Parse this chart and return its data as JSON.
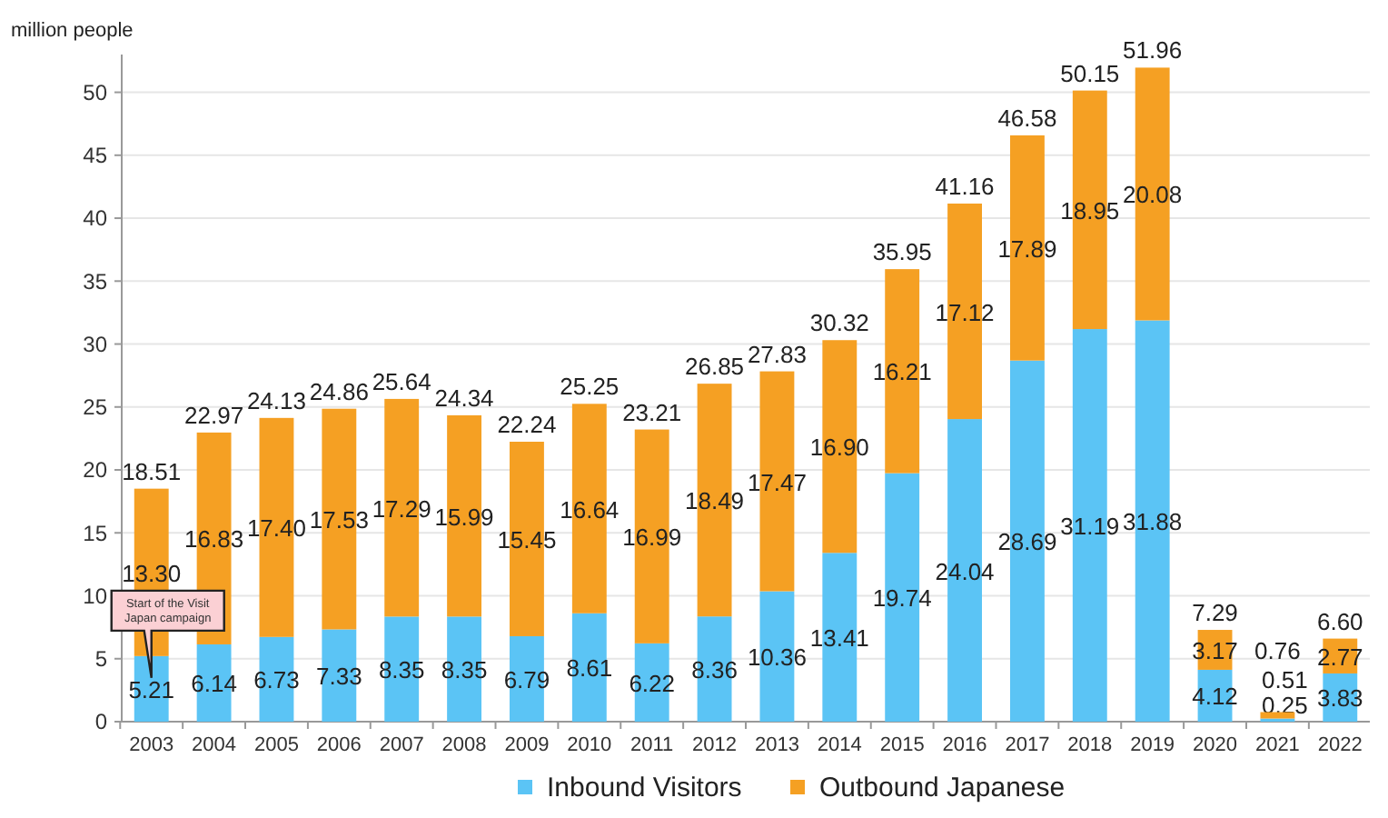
{
  "chart_data": {
    "type": "bar",
    "stacked": true,
    "ylabel": "million people",
    "categories": [
      "2003",
      "2004",
      "2005",
      "2006",
      "2007",
      "2008",
      "2009",
      "2010",
      "2011",
      "2012",
      "2013",
      "2014",
      "2015",
      "2016",
      "2017",
      "2018",
      "2019",
      "2020",
      "2021",
      "2022"
    ],
    "series": [
      {
        "name": "Inbound Visitors",
        "color": "#5bc4f5",
        "values": [
          5.21,
          6.14,
          6.73,
          7.33,
          8.35,
          8.35,
          6.79,
          8.61,
          6.22,
          8.36,
          10.36,
          13.41,
          19.74,
          24.04,
          28.69,
          31.19,
          31.88,
          4.12,
          0.25,
          3.83
        ],
        "value_labels": [
          "5.21",
          "6.14",
          "6.73",
          "7.33",
          "8.35",
          "8.35",
          "6.79",
          "8.61",
          "6.22",
          "8.36",
          "10.36",
          "13.41",
          "19.74",
          "24.04",
          "28.69",
          "31.19",
          "31.88",
          "4.12",
          "0.25",
          "3.83"
        ]
      },
      {
        "name": "Outbound Japanese",
        "color": "#f5a023",
        "values": [
          13.3,
          16.83,
          17.4,
          17.53,
          17.29,
          15.99,
          15.45,
          16.64,
          16.99,
          18.49,
          17.47,
          16.9,
          16.21,
          17.12,
          17.89,
          18.95,
          20.08,
          3.17,
          0.51,
          2.77
        ],
        "value_labels": [
          "13.30",
          "16.83",
          "17.40",
          "17.53",
          "17.29",
          "15.99",
          "15.45",
          "16.64",
          "16.99",
          "18.49",
          "17.47",
          "16.90",
          "16.21",
          "17.12",
          "17.89",
          "18.95",
          "20.08",
          "3.17",
          "0.51",
          "2.77"
        ]
      }
    ],
    "totals": [
      "18.51",
      "22.97",
      "24.13",
      "24.86",
      "25.64",
      "24.34",
      "22.24",
      "25.25",
      "23.21",
      "26.85",
      "27.83",
      "30.32",
      "35.95",
      "41.16",
      "46.58",
      "50.15",
      "51.96",
      "7.29",
      "0.76",
      "6.60"
    ],
    "ylim": [
      0,
      53
    ],
    "yticks": [
      0,
      5,
      10,
      15,
      20,
      25,
      30,
      35,
      40,
      45,
      50
    ],
    "grid": "y",
    "legend": "bottom",
    "annotations": [
      {
        "text": "Start of the Visit Japan campaign",
        "x": "2003",
        "y": 5.21
      }
    ]
  }
}
